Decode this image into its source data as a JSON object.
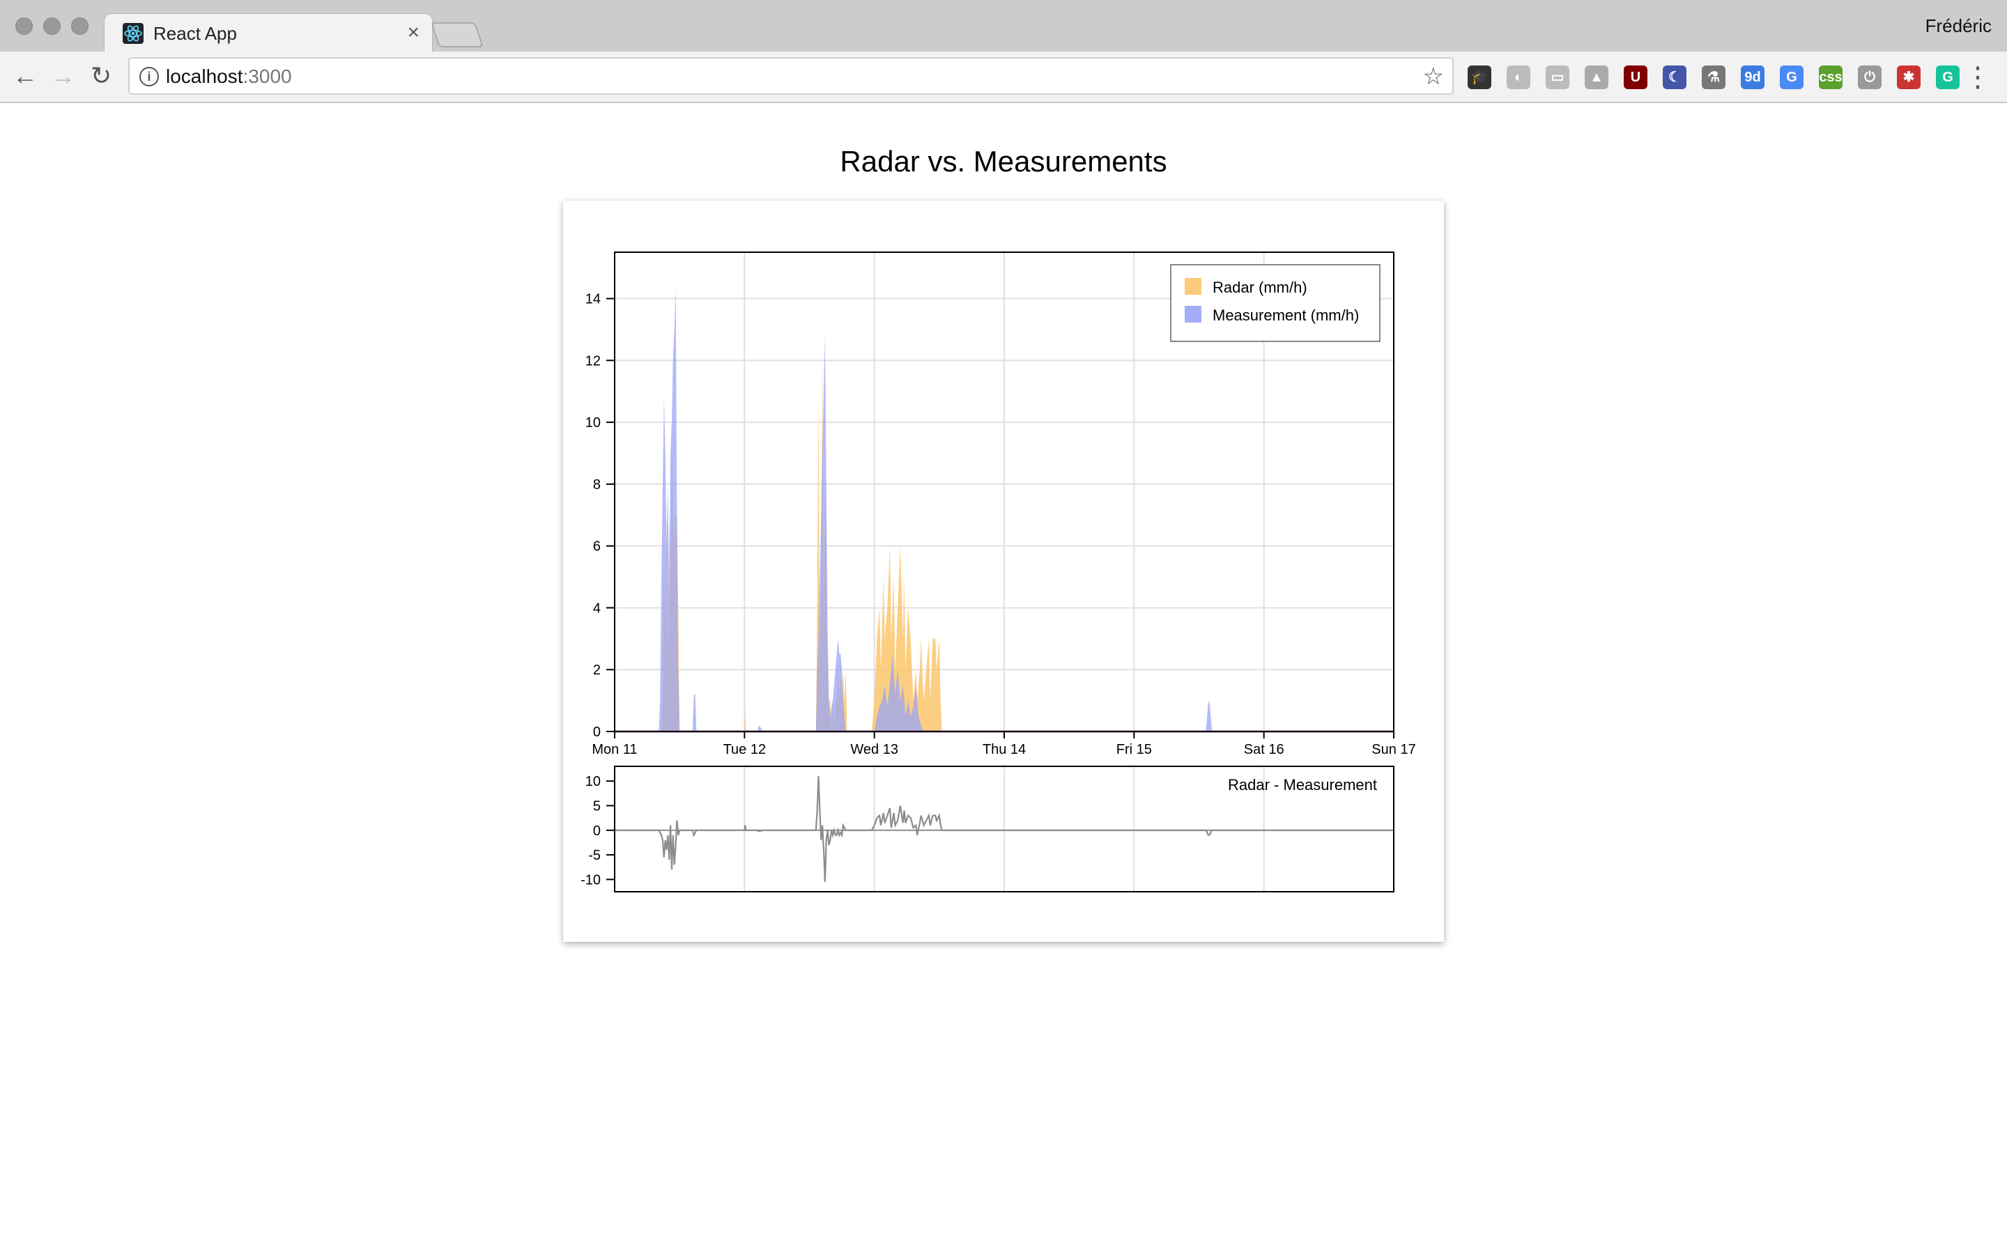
{
  "browser": {
    "tab_title": "React App",
    "tab_close": "×",
    "profile_name": "Frédéric",
    "url_host": "localhost",
    "url_port": ":3000",
    "extensions": [
      {
        "icon": "mortarboard-icon",
        "glyph": "🎓",
        "color": "#333333"
      },
      {
        "icon": "sync-icon",
        "glyph": "◐",
        "color": "#bbbbbb"
      },
      {
        "icon": "card-icon",
        "glyph": "▭",
        "color": "#bbbbbb"
      },
      {
        "icon": "drive-icon",
        "glyph": "▲",
        "color": "#aaaaaa"
      },
      {
        "icon": "ublock-icon",
        "glyph": "U",
        "color": "#800000"
      },
      {
        "icon": "moon-icon",
        "glyph": "☾",
        "color": "#4455aa"
      },
      {
        "icon": "flask-icon",
        "glyph": "⚗",
        "color": "#777777"
      },
      {
        "icon": "calendar-icon",
        "glyph": "9d",
        "color": "#3b7be3"
      },
      {
        "icon": "translate-icon",
        "glyph": "G",
        "color": "#4a8af4"
      },
      {
        "icon": "css-icon",
        "glyph": "css",
        "color": "#5aa02c"
      },
      {
        "icon": "power-icon",
        "glyph": "⏻",
        "color": "#999999"
      },
      {
        "icon": "bug-icon",
        "glyph": "✱",
        "color": "#cc3333"
      },
      {
        "icon": "grammarly-icon",
        "glyph": "G",
        "color": "#15c39a"
      }
    ]
  },
  "page": {
    "title": "Radar vs. Measurements"
  },
  "colors": {
    "radar": "#fbc56b",
    "measurement": "#9aa4f6",
    "diff_line": "#8c8c8c",
    "grid": "#e0e0e0"
  },
  "chart_data": [
    {
      "type": "area",
      "x_range": [
        "Mon 11 00:00",
        "Sun 17 00:00"
      ],
      "x_ticks": [
        "Mon 11",
        "Tue 12",
        "Wed 13",
        "Thu 14",
        "Fri 15",
        "Sat 16",
        "Sun 17"
      ],
      "ylim": [
        0,
        15.5
      ],
      "y_ticks": [
        "0",
        "2",
        "4",
        "6",
        "8",
        "10",
        "12",
        "14"
      ],
      "grid": true,
      "legend_position": "top-right",
      "series": [
        {
          "name": "Radar (mm/h)",
          "points": [
            [
              0,
              0
            ],
            [
              0.36,
              0
            ],
            [
              0.37,
              1
            ],
            [
              0.38,
              6
            ],
            [
              0.39,
              3
            ],
            [
              0.4,
              7
            ],
            [
              0.41,
              2
            ],
            [
              0.42,
              7
            ],
            [
              0.43,
              5
            ],
            [
              0.44,
              9
            ],
            [
              0.45,
              7
            ],
            [
              0.46,
              6
            ],
            [
              0.47,
              7
            ],
            [
              0.48,
              7
            ],
            [
              0.49,
              4
            ],
            [
              0.5,
              0
            ],
            [
              0.6,
              0
            ],
            [
              1.0,
              0
            ],
            [
              1.005,
              1
            ],
            [
              1.01,
              0
            ],
            [
              1.55,
              0
            ],
            [
              1.56,
              4
            ],
            [
              1.57,
              11
            ],
            [
              1.58,
              2
            ],
            [
              1.59,
              5
            ],
            [
              1.6,
              12
            ],
            [
              1.61,
              3
            ],
            [
              1.62,
              8
            ],
            [
              1.63,
              6
            ],
            [
              1.64,
              3
            ],
            [
              1.65,
              1
            ],
            [
              1.66,
              1
            ],
            [
              1.67,
              0
            ],
            [
              1.68,
              1
            ],
            [
              1.69,
              0
            ],
            [
              1.7,
              1
            ],
            [
              1.71,
              1
            ],
            [
              1.72,
              2
            ],
            [
              1.73,
              1
            ],
            [
              1.74,
              2
            ],
            [
              1.75,
              1
            ],
            [
              1.76,
              2
            ],
            [
              1.77,
              1
            ],
            [
              1.78,
              2
            ],
            [
              1.79,
              0
            ],
            [
              1.98,
              0
            ],
            [
              2.0,
              1
            ],
            [
              2.02,
              3
            ],
            [
              2.04,
              4
            ],
            [
              2.05,
              2
            ],
            [
              2.07,
              5
            ],
            [
              2.08,
              3
            ],
            [
              2.1,
              4
            ],
            [
              2.12,
              6
            ],
            [
              2.13,
              3
            ],
            [
              2.15,
              5
            ],
            [
              2.16,
              2
            ],
            [
              2.18,
              4
            ],
            [
              2.2,
              6
            ],
            [
              2.22,
              3
            ],
            [
              2.23,
              5
            ],
            [
              2.24,
              2
            ],
            [
              2.26,
              4
            ],
            [
              2.28,
              3
            ],
            [
              2.3,
              1
            ],
            [
              2.32,
              2
            ],
            [
              2.33,
              1
            ],
            [
              2.35,
              2
            ],
            [
              2.36,
              3
            ],
            [
              2.38,
              1
            ],
            [
              2.4,
              2
            ],
            [
              2.42,
              3
            ],
            [
              2.43,
              1
            ],
            [
              2.45,
              3
            ],
            [
              2.47,
              3
            ],
            [
              2.48,
              2
            ],
            [
              2.5,
              3
            ],
            [
              2.51,
              1
            ],
            [
              2.52,
              0
            ],
            [
              6,
              0
            ]
          ]
        },
        {
          "name": "Measurement (mm/h)",
          "points": [
            [
              0,
              0
            ],
            [
              0.34,
              0
            ],
            [
              0.35,
              1
            ],
            [
              0.36,
              5
            ],
            [
              0.38,
              10.8
            ],
            [
              0.39,
              9
            ],
            [
              0.4,
              6
            ],
            [
              0.41,
              8
            ],
            [
              0.42,
              4
            ],
            [
              0.43,
              9
            ],
            [
              0.44,
              10
            ],
            [
              0.45,
              12.1
            ],
            [
              0.46,
              13
            ],
            [
              0.47,
              14.4
            ],
            [
              0.48,
              7
            ],
            [
              0.49,
              2
            ],
            [
              0.5,
              0
            ],
            [
              0.6,
              0
            ],
            [
              0.61,
              1.2
            ],
            [
              0.62,
              1.2
            ],
            [
              0.63,
              0
            ],
            [
              1.1,
              0
            ],
            [
              1.11,
              0.2
            ],
            [
              1.13,
              0.1
            ],
            [
              1.14,
              0
            ],
            [
              1.55,
              0
            ],
            [
              1.56,
              2
            ],
            [
              1.57,
              3
            ],
            [
              1.58,
              5
            ],
            [
              1.59,
              7
            ],
            [
              1.6,
              9
            ],
            [
              1.61,
              11
            ],
            [
              1.62,
              12.8
            ],
            [
              1.63,
              8
            ],
            [
              1.64,
              3
            ],
            [
              1.65,
              1
            ],
            [
              1.66,
              0.5
            ],
            [
              1.67,
              0.8
            ],
            [
              1.68,
              1
            ],
            [
              1.69,
              1.5
            ],
            [
              1.7,
              2
            ],
            [
              1.71,
              2.5
            ],
            [
              1.72,
              3
            ],
            [
              1.73,
              2.5
            ],
            [
              1.74,
              2.5
            ],
            [
              1.75,
              2
            ],
            [
              1.76,
              1
            ],
            [
              1.77,
              0.5
            ],
            [
              1.78,
              0
            ],
            [
              2.0,
              0
            ],
            [
              2.02,
              0.5
            ],
            [
              2.04,
              0.8
            ],
            [
              2.06,
              1
            ],
            [
              2.08,
              1.5
            ],
            [
              2.1,
              0.8
            ],
            [
              2.12,
              1.5
            ],
            [
              2.14,
              2.5
            ],
            [
              2.16,
              1.2
            ],
            [
              2.18,
              2
            ],
            [
              2.2,
              1
            ],
            [
              2.22,
              1.5
            ],
            [
              2.24,
              0.5
            ],
            [
              2.26,
              1
            ],
            [
              2.28,
              0.5
            ],
            [
              2.3,
              0.8
            ],
            [
              2.32,
              1.5
            ],
            [
              2.34,
              0.5
            ],
            [
              2.36,
              0.2
            ],
            [
              2.38,
              0
            ],
            [
              4.55,
              0
            ],
            [
              4.56,
              0.3
            ],
            [
              4.57,
              0.9
            ],
            [
              4.58,
              1
            ],
            [
              4.59,
              0.5
            ],
            [
              4.6,
              0
            ],
            [
              6,
              0
            ]
          ]
        }
      ]
    },
    {
      "type": "line",
      "title": "Radar - Measurement",
      "x_range": [
        "Mon 11 00:00",
        "Sun 17 00:00"
      ],
      "ylim": [
        -12.5,
        13
      ],
      "y_ticks": [
        "10",
        "5",
        "0",
        "-5",
        "-10"
      ],
      "grid": true,
      "series": [
        {
          "name": "Radar - Measurement",
          "points": [
            [
              0,
              0
            ],
            [
              0.34,
              0
            ],
            [
              0.36,
              -1
            ],
            [
              0.37,
              -2
            ],
            [
              0.38,
              -5.5
            ],
            [
              0.39,
              -2
            ],
            [
              0.4,
              -4
            ],
            [
              0.41,
              -1
            ],
            [
              0.42,
              -6
            ],
            [
              0.43,
              1
            ],
            [
              0.44,
              -8
            ],
            [
              0.45,
              -1
            ],
            [
              0.46,
              -7
            ],
            [
              0.47,
              -3
            ],
            [
              0.48,
              2
            ],
            [
              0.49,
              -1
            ],
            [
              0.5,
              0
            ],
            [
              0.6,
              0
            ],
            [
              0.61,
              -1
            ],
            [
              0.62,
              -0.5
            ],
            [
              0.63,
              0
            ],
            [
              1.0,
              0
            ],
            [
              1.005,
              1
            ],
            [
              1.01,
              0
            ],
            [
              1.1,
              0
            ],
            [
              1.11,
              -0.2
            ],
            [
              1.13,
              -0.1
            ],
            [
              1.14,
              0
            ],
            [
              1.55,
              0
            ],
            [
              1.56,
              4
            ],
            [
              1.57,
              11
            ],
            [
              1.58,
              4
            ],
            [
              1.59,
              -2
            ],
            [
              1.6,
              1
            ],
            [
              1.61,
              -4
            ],
            [
              1.62,
              -10.5
            ],
            [
              1.63,
              -2
            ],
            [
              1.64,
              0
            ],
            [
              1.65,
              -3
            ],
            [
              1.66,
              -2
            ],
            [
              1.67,
              0
            ],
            [
              1.68,
              -1
            ],
            [
              1.69,
              0
            ],
            [
              1.7,
              -1
            ],
            [
              1.71,
              -1
            ],
            [
              1.72,
              0
            ],
            [
              1.73,
              -1
            ],
            [
              1.74,
              -0.5
            ],
            [
              1.75,
              -1
            ],
            [
              1.76,
              1
            ],
            [
              1.77,
              0.5
            ],
            [
              1.78,
              0
            ],
            [
              1.98,
              0
            ],
            [
              2.0,
              1
            ],
            [
              2.02,
              2.5
            ],
            [
              2.04,
              3
            ],
            [
              2.05,
              1
            ],
            [
              2.07,
              3.5
            ],
            [
              2.08,
              1.5
            ],
            [
              2.1,
              3
            ],
            [
              2.12,
              4.5
            ],
            [
              2.13,
              0.5
            ],
            [
              2.15,
              3.5
            ],
            [
              2.16,
              1
            ],
            [
              2.18,
              2
            ],
            [
              2.2,
              5
            ],
            [
              2.22,
              1.5
            ],
            [
              2.23,
              4
            ],
            [
              2.24,
              1.5
            ],
            [
              2.26,
              3
            ],
            [
              2.28,
              2.5
            ],
            [
              2.3,
              0.5
            ],
            [
              2.32,
              1
            ],
            [
              2.33,
              -1
            ],
            [
              2.35,
              1.5
            ],
            [
              2.36,
              3
            ],
            [
              2.38,
              1
            ],
            [
              2.4,
              2
            ],
            [
              2.42,
              3
            ],
            [
              2.43,
              1
            ],
            [
              2.45,
              3
            ],
            [
              2.47,
              3
            ],
            [
              2.48,
              2
            ],
            [
              2.5,
              3
            ],
            [
              2.51,
              1
            ],
            [
              2.52,
              0
            ],
            [
              4.55,
              0
            ],
            [
              4.56,
              -0.3
            ],
            [
              4.57,
              -0.9
            ],
            [
              4.58,
              -1
            ],
            [
              4.59,
              -0.5
            ],
            [
              4.6,
              0
            ],
            [
              6,
              0
            ]
          ]
        }
      ]
    }
  ]
}
